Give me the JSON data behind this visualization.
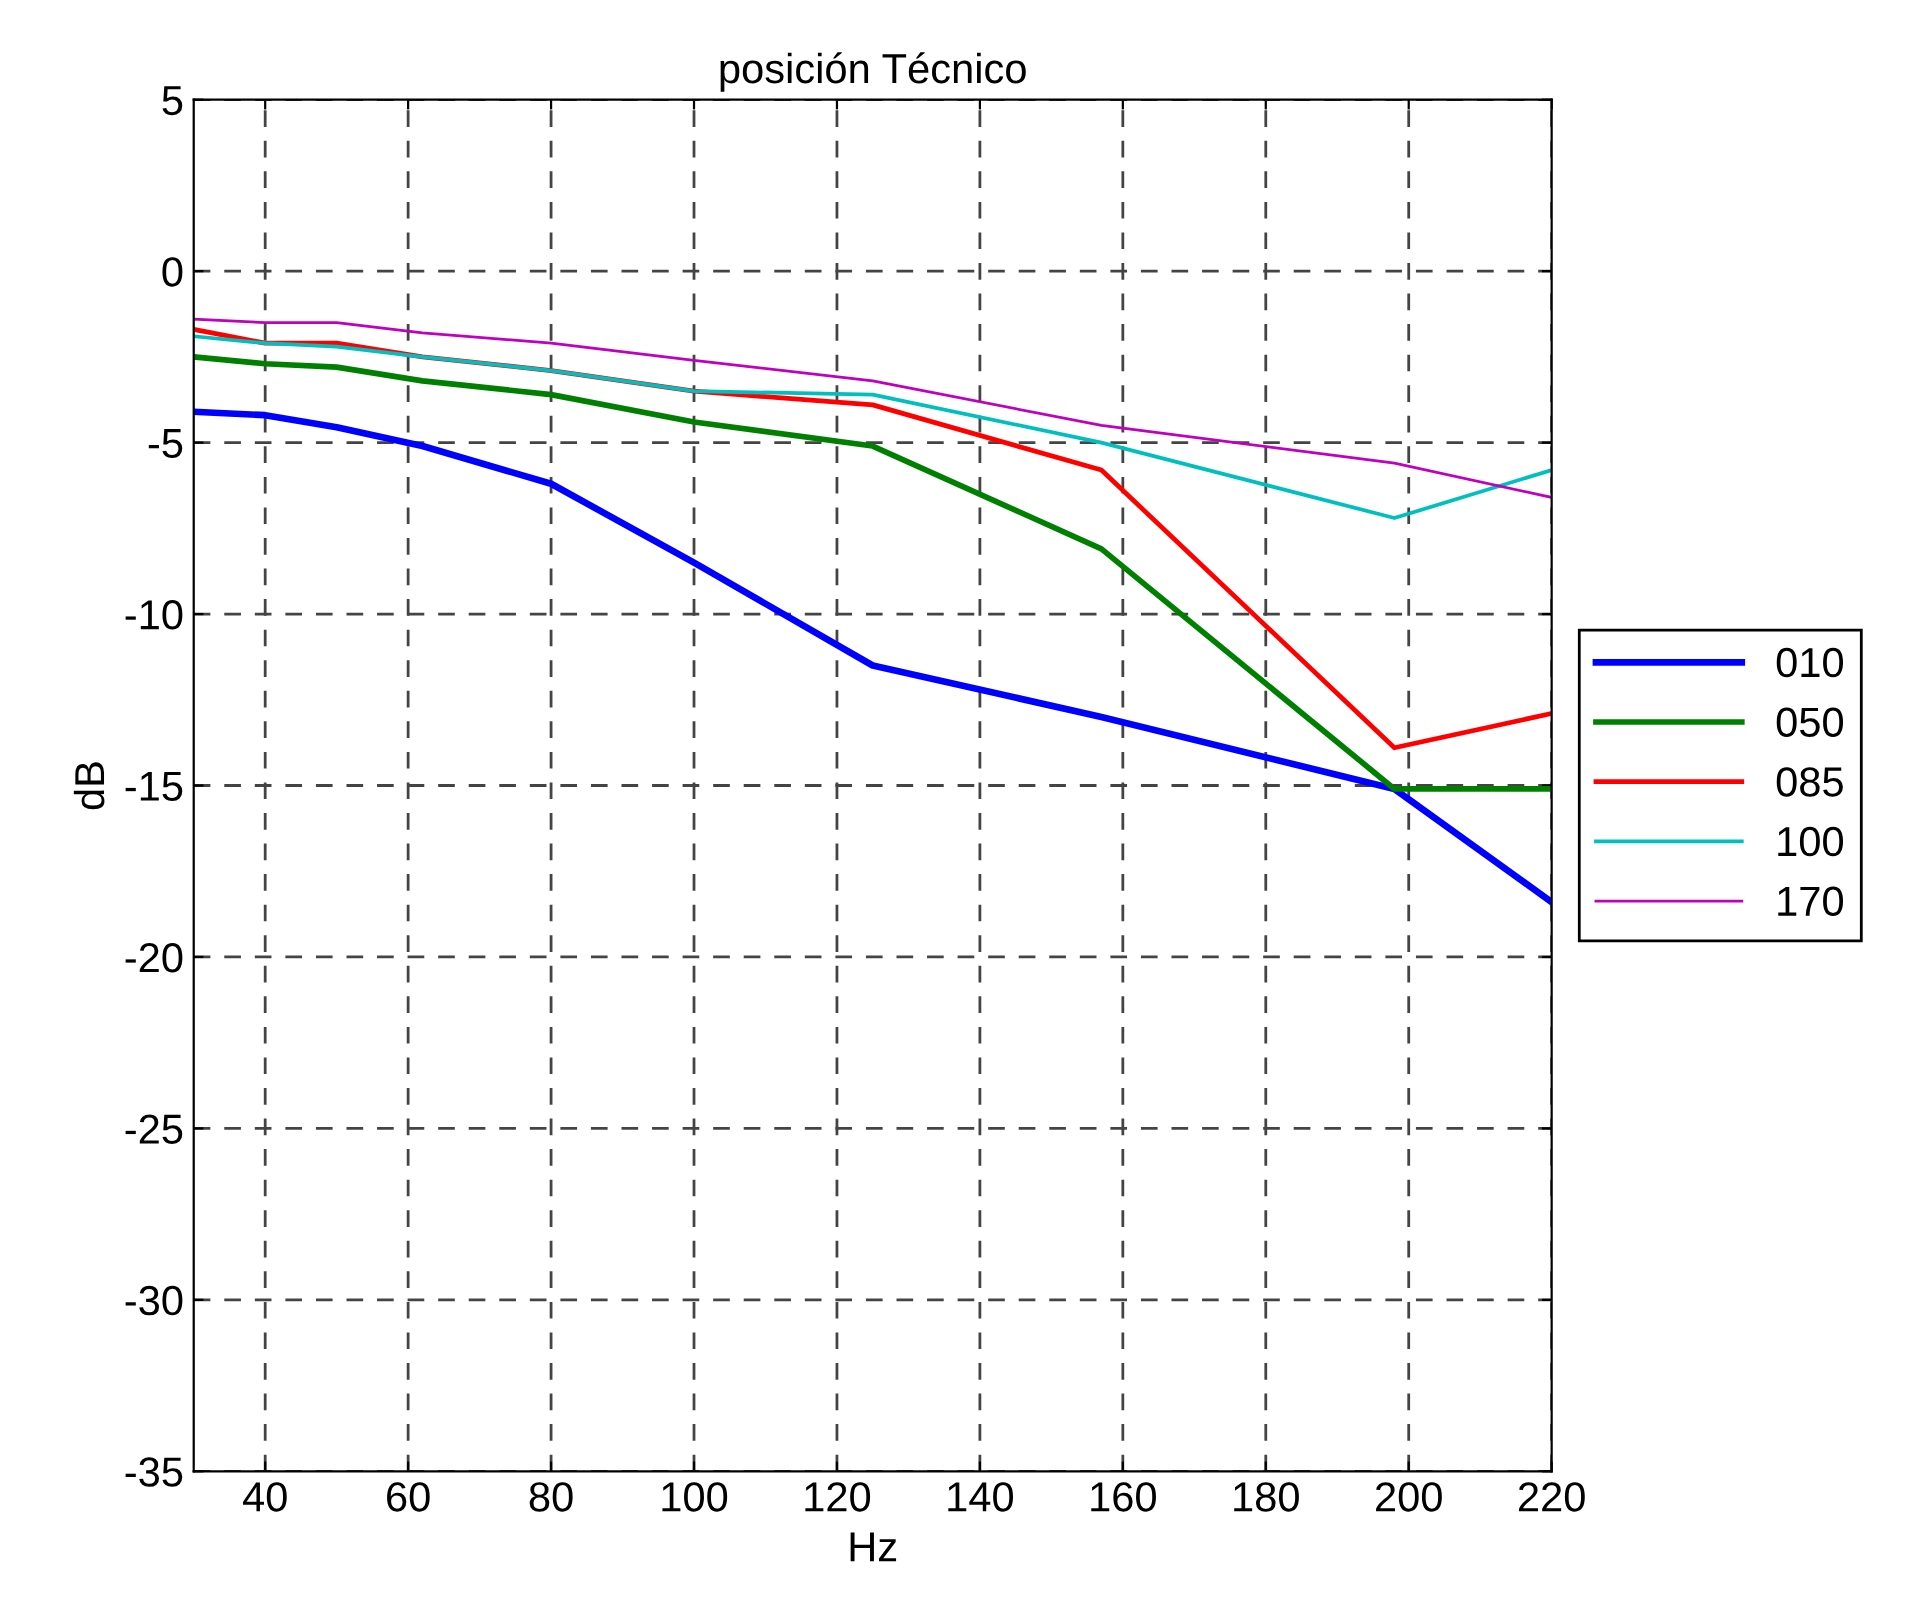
{
  "chart_data": {
    "type": "line",
    "title": "posición Técnico",
    "xlabel": "Hz",
    "ylabel": "dB",
    "x": [
      30,
      40,
      50,
      62,
      80,
      100,
      125,
      157,
      198,
      220
    ],
    "series": [
      {
        "name": "010",
        "color": "#0000ff",
        "values": [
          -4.1,
          -4.2,
          -4.55,
          -5.1,
          -6.2,
          -8.5,
          -11.5,
          -13.0,
          -15.1,
          -18.4
        ]
      },
      {
        "name": "050",
        "color": "#008000",
        "values": [
          -2.5,
          -2.7,
          -2.8,
          -3.2,
          -3.6,
          -4.4,
          -5.1,
          -8.1,
          -15.1,
          -15.1
        ]
      },
      {
        "name": "085",
        "color": "#ff0000",
        "values": [
          -1.7,
          -2.1,
          -2.1,
          -2.5,
          -2.9,
          -3.5,
          -3.9,
          -5.8,
          -13.9,
          -12.9
        ]
      },
      {
        "name": "100",
        "color": "#00bfbf",
        "values": [
          -1.9,
          -2.1,
          -2.2,
          -2.5,
          -2.9,
          -3.5,
          -3.6,
          -5.0,
          -7.2,
          -5.8
        ]
      },
      {
        "name": "170",
        "color": "#bf00bf",
        "values": [
          -1.4,
          -1.5,
          -1.5,
          -1.8,
          -2.1,
          -2.6,
          -3.2,
          -4.5,
          -5.6,
          -6.6
        ]
      }
    ],
    "xlim": [
      30,
      220
    ],
    "xticks": [
      40,
      60,
      80,
      100,
      120,
      140,
      160,
      180,
      200,
      220
    ],
    "ylim": [
      -35,
      5
    ],
    "yticks": [
      -35,
      -30,
      -25,
      -20,
      -15,
      -10,
      -5,
      0,
      5
    ],
    "grid": true,
    "legend": "right",
    "marker": "none",
    "line_style": "solid"
  }
}
